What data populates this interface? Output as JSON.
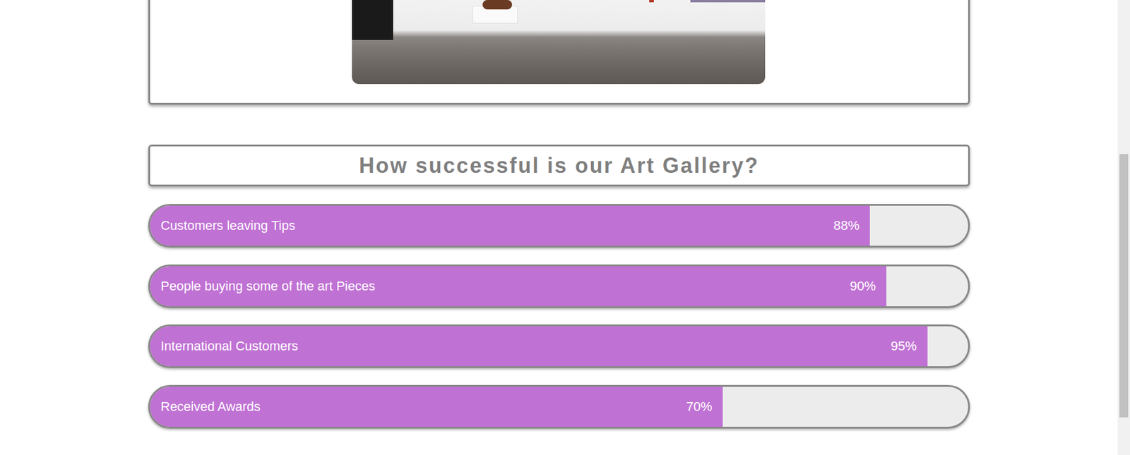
{
  "chart_data": {
    "type": "bar",
    "title": "How successful is our Art Gallery?",
    "orientation": "horizontal",
    "categories": [
      "Customers leaving Tips",
      "People buying some of the art Pieces",
      "International Customers",
      "Received Awards"
    ],
    "values": [
      88,
      90,
      95,
      70
    ],
    "value_labels": [
      "88%",
      "90%",
      "95%",
      "70%"
    ],
    "xlim": [
      0,
      100
    ],
    "color": "#c071d4",
    "data_labels": true,
    "tick_labels": false
  }
}
